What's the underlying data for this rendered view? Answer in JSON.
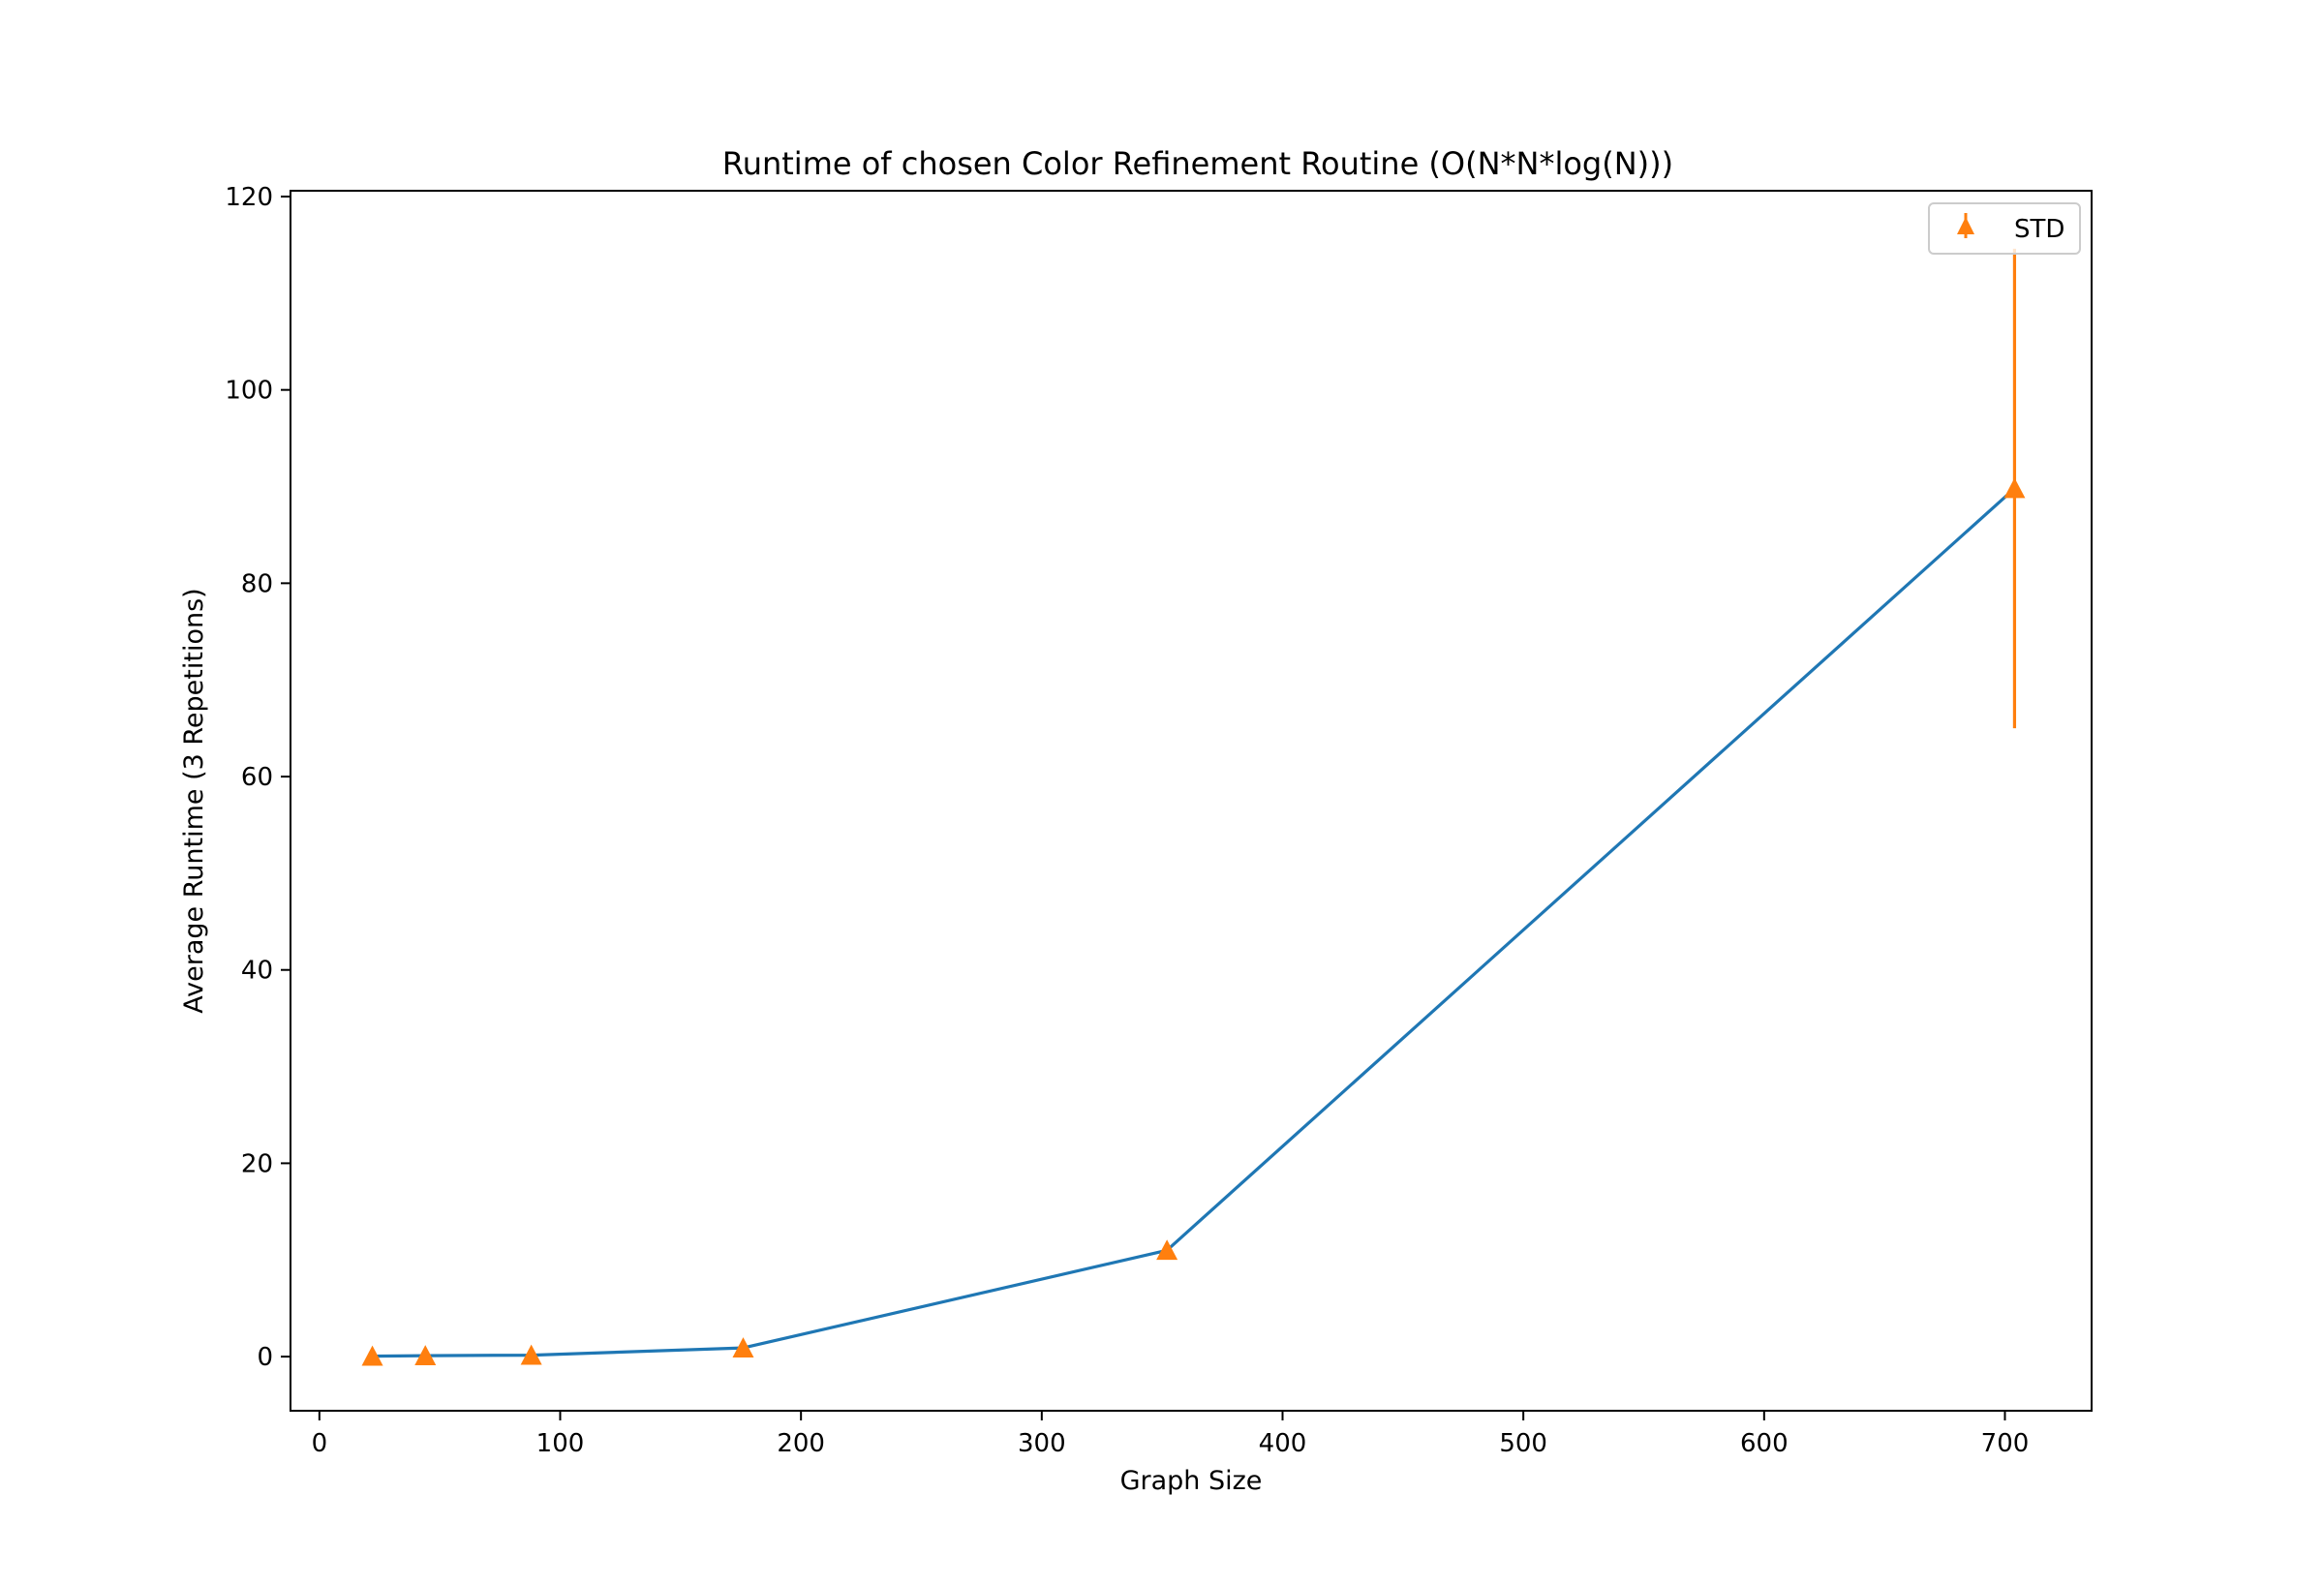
{
  "chart_data": {
    "type": "line",
    "title": "Runtime of chosen Color Refinement Routine (O(N*N*log(N)))",
    "xlabel": "Graph Size",
    "ylabel": "Average Runtime (3 Repetitions)",
    "xlim": [
      -12,
      736
    ],
    "ylim": [
      -5.6,
      120.6
    ],
    "xticks": [
      0,
      100,
      200,
      300,
      400,
      500,
      600,
      700
    ],
    "yticks": [
      0,
      20,
      40,
      60,
      80,
      100,
      120
    ],
    "grid": false,
    "legend": {
      "position": "top-right",
      "entries": [
        "STD"
      ]
    },
    "series": [
      {
        "kind": "line",
        "color": "#1f77b4",
        "x": [
          22,
          44,
          88,
          176,
          352,
          704
        ],
        "y": [
          0.05,
          0.1,
          0.15,
          0.9,
          11.0,
          89.8
        ]
      },
      {
        "kind": "errorbar",
        "name": "STD",
        "color": "#ff7f0e",
        "marker": "triangle-up",
        "x": [
          22,
          44,
          88,
          176,
          352,
          704
        ],
        "y": [
          0.05,
          0.1,
          0.15,
          0.9,
          11.0,
          89.8
        ],
        "err": [
          0.01,
          0.02,
          0.03,
          0.1,
          0.4,
          24.8
        ]
      }
    ]
  }
}
